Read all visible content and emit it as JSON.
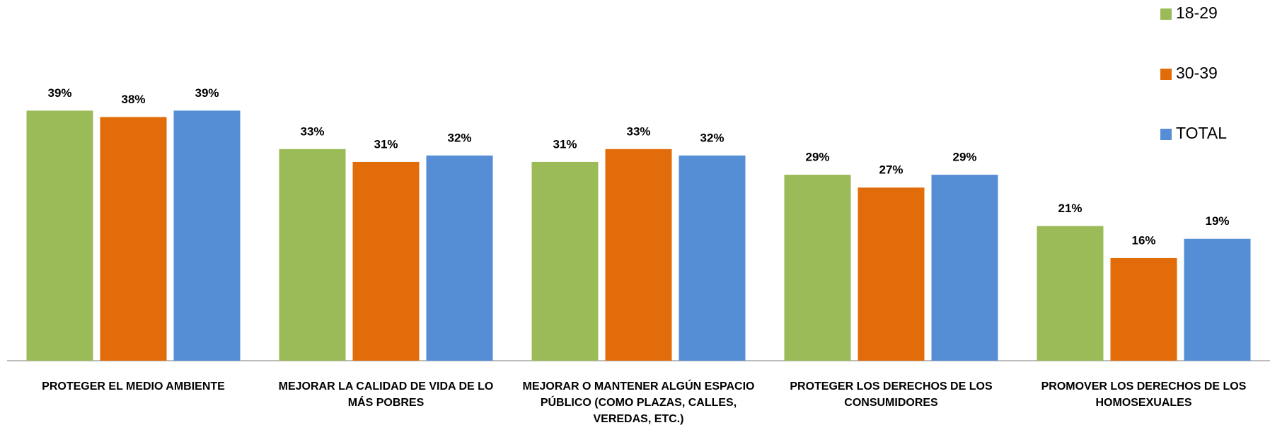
{
  "chart_data": {
    "type": "bar",
    "categories": [
      "PROTEGER EL MEDIO AMBIENTE",
      "MEJORAR LA CALIDAD DE VIDA DE LO MÁS POBRES",
      "MEJORAR O MANTENER ALGÚN ESPACIO PÚBLICO (COMO PLAZAS, CALLES, VEREDAS, ETC.)",
      "PROTEGER LOS DERECHOS DE LOS CONSUMIDORES",
      "PROMOVER LOS DERECHOS DE LOS HOMOSEXUALES"
    ],
    "series": [
      {
        "name": "18-29",
        "color": "#9bbb59",
        "values": [
          39,
          33,
          31,
          29,
          21
        ],
        "value_labels": [
          "39%",
          "33%",
          "31%",
          "29%",
          "21%"
        ]
      },
      {
        "name": "30-39",
        "color": "#e36c0a",
        "values": [
          38,
          31,
          33,
          27,
          16
        ],
        "value_labels": [
          "38%",
          "31%",
          "33%",
          "27%",
          "16%"
        ]
      },
      {
        "name": "TOTAL",
        "color": "#558ed5",
        "values": [
          39,
          32,
          32,
          29,
          19
        ],
        "value_labels": [
          "39%",
          "32%",
          "32%",
          "29%",
          "19%"
        ]
      }
    ],
    "ylim": [
      0,
      45
    ],
    "legend": "right"
  }
}
